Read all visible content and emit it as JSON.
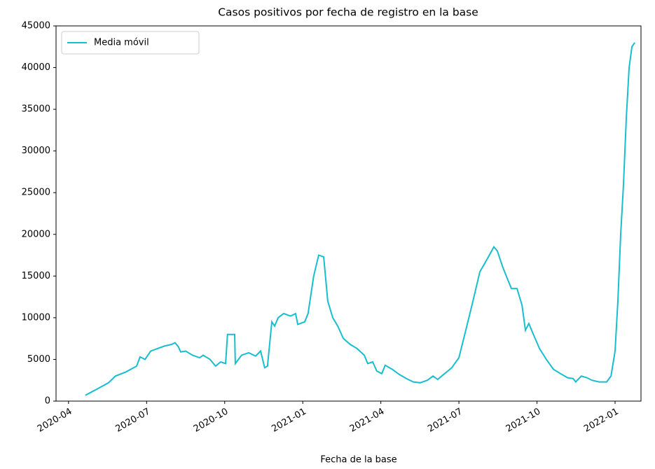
{
  "chart_data": {
    "type": "line",
    "title": "Casos positivos por fecha de registro en la base",
    "x_label": "Fecha de la base",
    "legend": "upper left",
    "grid": false,
    "xlim": [
      2020.21,
      2022.083
    ],
    "ylim": [
      0,
      45000
    ],
    "xticks": [
      {
        "value": 2020.25,
        "label": "2020-04"
      },
      {
        "value": 2020.5,
        "label": "2020-07"
      },
      {
        "value": 2020.75,
        "label": "2020-10"
      },
      {
        "value": 2021.0,
        "label": "2021-01"
      },
      {
        "value": 2021.25,
        "label": "2021-04"
      },
      {
        "value": 2021.5,
        "label": "2021-07"
      },
      {
        "value": 2021.75,
        "label": "2021-10"
      },
      {
        "value": 2022.0,
        "label": "2022-01"
      }
    ],
    "yticks": [
      0,
      5000,
      10000,
      15000,
      20000,
      25000,
      30000,
      35000,
      40000,
      45000
    ],
    "x": [
      2020.304,
      2020.344,
      2020.378,
      2020.4,
      2020.434,
      2020.468,
      2020.479,
      2020.495,
      2020.513,
      2020.535,
      2020.557,
      2020.58,
      2020.591,
      2020.602,
      2020.609,
      2020.625,
      2020.647,
      2020.67,
      2020.681,
      2020.703,
      2020.721,
      2020.737,
      2020.753,
      2020.759,
      2020.782,
      2020.784,
      2020.804,
      2020.827,
      2020.849,
      2020.865,
      2020.878,
      2020.887,
      2020.901,
      2020.91,
      2020.921,
      2020.939,
      2020.961,
      2020.977,
      2020.984,
      2021.006,
      2021.017,
      2021.035,
      2021.051,
      2021.067,
      2021.08,
      2021.096,
      2021.112,
      2021.13,
      2021.152,
      2021.174,
      2021.197,
      2021.208,
      2021.224,
      2021.237,
      2021.253,
      2021.264,
      2021.287,
      2021.309,
      2021.332,
      2021.354,
      2021.376,
      2021.399,
      2021.417,
      2021.432,
      2021.448,
      2021.477,
      2021.5,
      2021.522,
      2021.545,
      2021.567,
      2021.59,
      2021.612,
      2021.623,
      2021.641,
      2021.668,
      2021.686,
      2021.702,
      2021.713,
      2021.724,
      2021.735,
      2021.758,
      2021.78,
      2021.803,
      2021.825,
      2021.848,
      2021.866,
      2021.874,
      2021.892,
      2021.91,
      2021.926,
      2021.949,
      2021.973,
      2021.987,
      2022.0,
      2022.009,
      2022.018,
      2022.027,
      2022.036,
      2022.045,
      2022.054,
      2022.063
    ],
    "series": [
      {
        "name": "Media móvil",
        "color": "#17becf",
        "values": [
          700,
          1500,
          2200,
          3000,
          3500,
          4200,
          5300,
          5000,
          6000,
          6300,
          6600,
          6800,
          7000,
          6500,
          5900,
          6000,
          5500,
          5200,
          5500,
          5000,
          4200,
          4700,
          4500,
          8000,
          8000,
          4500,
          5500,
          5800,
          5400,
          6000,
          4000,
          4200,
          9500,
          9000,
          10000,
          10500,
          10200,
          10500,
          9200,
          9500,
          10500,
          15000,
          17500,
          17300,
          12000,
          10000,
          9000,
          7500,
          6800,
          6300,
          5500,
          4500,
          4700,
          3600,
          3300,
          4300,
          3800,
          3200,
          2700,
          2300,
          2200,
          2500,
          3000,
          2600,
          3100,
          4000,
          5200,
          8500,
          12000,
          15500,
          17000,
          18500,
          18000,
          16000,
          13500,
          13500,
          11500,
          8500,
          9300,
          8300,
          6300,
          5000,
          3800,
          3300,
          2800,
          2700,
          2300,
          3000,
          2800,
          2500,
          2300,
          2300,
          3000,
          6000,
          12000,
          20000,
          26000,
          34000,
          40000,
          42500,
          43000
        ]
      }
    ]
  }
}
